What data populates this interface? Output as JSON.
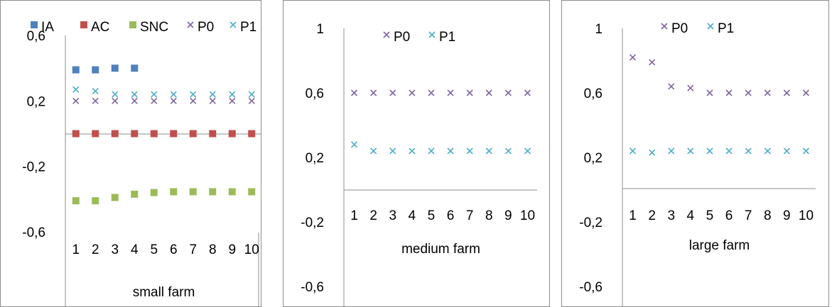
{
  "chart_data": [
    {
      "type": "scatter",
      "title": "",
      "xlabel": "small farm",
      "ylabel": "",
      "ylim": [
        -0.6,
        0.6
      ],
      "yticks": [
        "0,6",
        "0,2",
        "-0,2",
        "-0,6"
      ],
      "x": [
        "1",
        "2",
        "3",
        "4",
        "5",
        "6",
        "7",
        "8",
        "9",
        "10"
      ],
      "legend_position": "top",
      "grid": false,
      "series": [
        {
          "name": "IA",
          "marker": "square",
          "color": "#4F81BD",
          "values": [
            0.39,
            0.39,
            0.4,
            0.4,
            null,
            null,
            null,
            null,
            null,
            null
          ]
        },
        {
          "name": "AC",
          "marker": "square",
          "color": "#C0504D",
          "values": [
            0,
            0,
            0,
            0,
            0,
            0,
            0,
            0,
            0,
            0
          ]
        },
        {
          "name": "SNC",
          "marker": "square",
          "color": "#9BBB59",
          "values": [
            -0.41,
            -0.41,
            -0.39,
            -0.37,
            -0.36,
            -0.355,
            -0.355,
            -0.355,
            -0.355,
            -0.355
          ]
        },
        {
          "name": "P0",
          "marker": "x",
          "color": "#8064A2",
          "values": [
            0.2,
            0.2,
            0.2,
            0.2,
            0.2,
            0.2,
            0.2,
            0.2,
            0.2,
            0.2
          ]
        },
        {
          "name": "P1",
          "marker": "x",
          "color": "#4BACC6",
          "values": [
            0.27,
            0.26,
            0.24,
            0.24,
            0.24,
            0.24,
            0.24,
            0.24,
            0.24,
            0.24
          ]
        }
      ]
    },
    {
      "type": "scatter",
      "title": "",
      "xlabel": "medium farm",
      "ylabel": "",
      "ylim": [
        -0.6,
        1.0
      ],
      "yticks": [
        "1",
        "0,6",
        "0,2",
        "-0,2",
        "-0,6"
      ],
      "x": [
        "1",
        "2",
        "3",
        "4",
        "5",
        "6",
        "7",
        "8",
        "9",
        "10"
      ],
      "legend_position": "top",
      "grid": false,
      "series": [
        {
          "name": "P0",
          "marker": "x",
          "color": "#8064A2",
          "values": [
            0.6,
            0.6,
            0.6,
            0.6,
            0.6,
            0.6,
            0.6,
            0.6,
            0.6,
            0.6
          ]
        },
        {
          "name": "P1",
          "marker": "x",
          "color": "#4BACC6",
          "values": [
            0.28,
            0.24,
            0.24,
            0.24,
            0.24,
            0.24,
            0.24,
            0.24,
            0.24,
            0.24
          ]
        }
      ]
    },
    {
      "type": "scatter",
      "title": "",
      "xlabel": "large farm",
      "ylabel": "",
      "ylim": [
        -0.6,
        1.0
      ],
      "yticks": [
        "1",
        "0,6",
        "0,2",
        "-0,2",
        "-0,6"
      ],
      "x": [
        "1",
        "2",
        "3",
        "4",
        "5",
        "6",
        "7",
        "8",
        "9",
        "10"
      ],
      "legend_position": "top",
      "grid": false,
      "series": [
        {
          "name": "P0",
          "marker": "x",
          "color": "#8064A2",
          "values": [
            0.82,
            0.79,
            0.64,
            0.63,
            0.6,
            0.6,
            0.6,
            0.6,
            0.6,
            0.6
          ]
        },
        {
          "name": "P1",
          "marker": "x",
          "color": "#4BACC6",
          "values": [
            0.24,
            0.23,
            0.24,
            0.24,
            0.24,
            0.24,
            0.24,
            0.24,
            0.24,
            0.24
          ]
        }
      ]
    }
  ]
}
